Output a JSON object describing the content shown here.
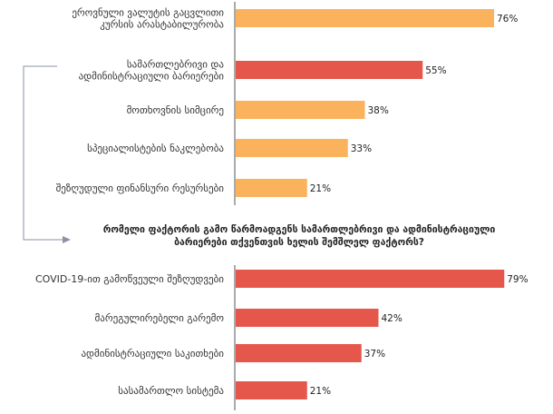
{
  "colors": {
    "orange": "#fbb25c",
    "red": "#e5574b",
    "axis": "#7d7d7d",
    "connector": "#8a93a3"
  },
  "chart_data": [
    {
      "type": "bar",
      "orientation": "horizontal",
      "categories": [
        [
          "ეროვნული ვალუტის გაცვლითი",
          "კურსის არასტაბილურობა"
        ],
        [
          "სამართლებრივი და",
          "ადმინისტრაციული ბარიერები"
        ],
        [
          "მოთხოვნის სიმცირე"
        ],
        [
          "სპეციალისტების ნაკლებობა"
        ],
        [
          "შეზღუდული ფინანსური რესურსები"
        ]
      ],
      "values": [
        76,
        55,
        38,
        33,
        21
      ],
      "value_labels": [
        "76%",
        "55%",
        "38%",
        "33%",
        "21%"
      ],
      "bar_colors": [
        "orange",
        "red",
        "orange",
        "orange",
        "orange"
      ],
      "xlim": [
        0,
        100
      ]
    },
    {
      "type": "bar",
      "orientation": "horizontal",
      "title": [
        "რომელი ფაქტორის გამო წარმოადგენს სამართლებრივი და ადმინისტრაციული",
        "ბარიერები თქვენთვის ხელის შემშლელ ფაქტორს?"
      ],
      "categories": [
        [
          "COVID-19-ით გამოწვეული შეზღუდვები"
        ],
        [
          "მარეგულირებელი გარემო"
        ],
        [
          "ადმინისტრაციული საკითხები"
        ],
        [
          "სასამართლო სისტემა"
        ]
      ],
      "values": [
        79,
        42,
        37,
        21
      ],
      "value_labels": [
        "79%",
        "42%",
        "37%",
        "21%"
      ],
      "bar_colors": [
        "red",
        "red",
        "red",
        "red"
      ],
      "xlim": [
        0,
        100
      ]
    }
  ]
}
